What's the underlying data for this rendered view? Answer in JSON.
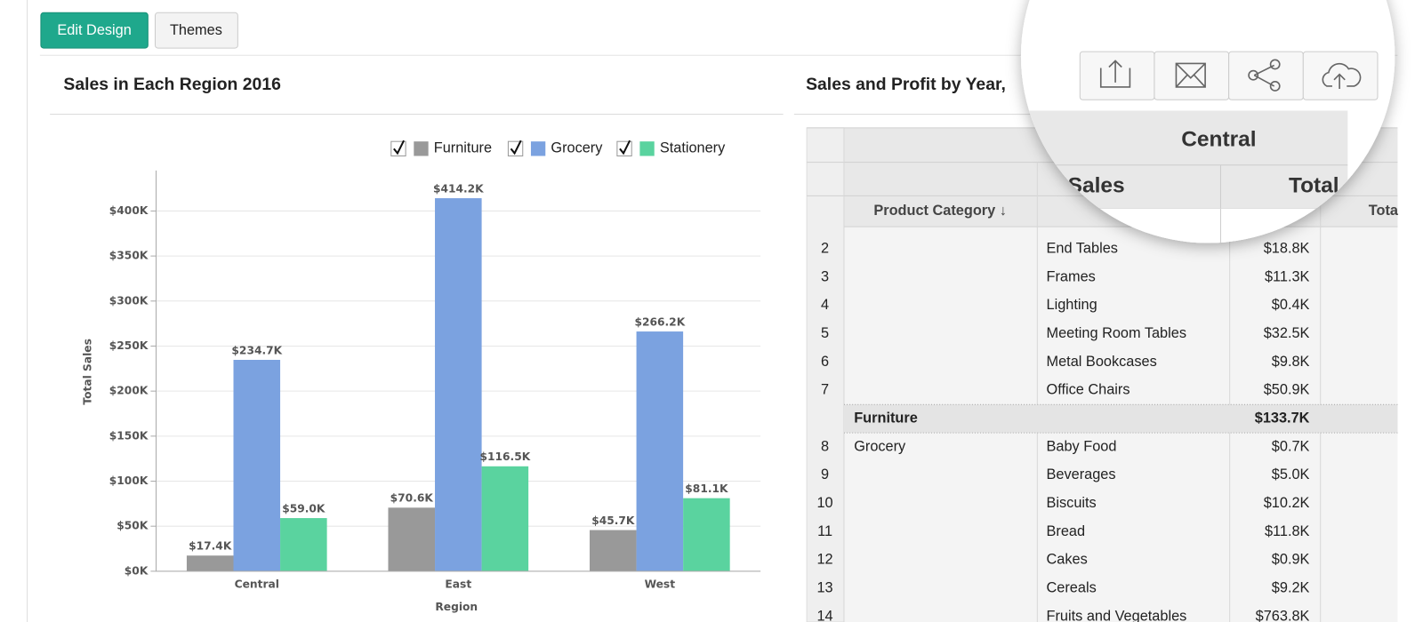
{
  "toolbar": {
    "edit_design": "Edit Design",
    "themes": "Themes"
  },
  "chart_data": {
    "type": "bar",
    "title": "Sales in Each Region 2016",
    "x_label": "Region",
    "y_label": "Total Sales",
    "categories": [
      "Central",
      "East",
      "West"
    ],
    "series": [
      {
        "name": "Furniture",
        "color": "#999999",
        "values": [
          17.4,
          70.6,
          45.7
        ],
        "value_labels": [
          "$17.4K",
          "$70.6K",
          "$45.7K"
        ]
      },
      {
        "name": "Grocery",
        "color": "#7ba2e0",
        "values": [
          234.7,
          414.2,
          266.2
        ],
        "value_labels": [
          "$234.7K",
          "$414.2K",
          "$266.2K"
        ]
      },
      {
        "name": "Stationery",
        "color": "#5ad39f",
        "values": [
          59.0,
          116.5,
          81.1
        ],
        "value_labels": [
          "$59.0K",
          "$116.5K",
          "$81.1K"
        ]
      }
    ],
    "ylim": [
      0,
      445
    ],
    "yticks": [
      {
        "value": 0,
        "label": "$0K"
      },
      {
        "value": 50,
        "label": "$50K"
      },
      {
        "value": 100,
        "label": "$100K"
      },
      {
        "value": 150,
        "label": "$150K"
      },
      {
        "value": 200,
        "label": "$200K"
      },
      {
        "value": 250,
        "label": "$250K"
      },
      {
        "value": 300,
        "label": "$300K"
      },
      {
        "value": 350,
        "label": "$350K"
      },
      {
        "value": 400,
        "label": "$400K"
      }
    ],
    "grid": true,
    "legend": "top-right"
  },
  "pivot": {
    "title": "Sales and Profit by Year,",
    "region": "Central",
    "measure_header": "al Sales",
    "measure_header_2": "Total",
    "row_header": "Product Category ↓",
    "next_header": "Tota",
    "rows": [
      {
        "num": "2",
        "subcategory": "End Tables",
        "sales": "$18.8K"
      },
      {
        "num": "3",
        "subcategory": "Frames",
        "sales": "$11.3K"
      },
      {
        "num": "4",
        "subcategory": "Lighting",
        "sales": "$0.4K"
      },
      {
        "num": "5",
        "subcategory": "Meeting Room Tables",
        "sales": "$32.5K"
      },
      {
        "num": "6",
        "subcategory": "Metal Bookcases",
        "sales": "$9.8K"
      },
      {
        "num": "7",
        "subcategory": "Office Chairs",
        "sales": "$50.9K"
      },
      {
        "category": "Furniture",
        "sales": "$133.7K",
        "subtotal": true
      },
      {
        "num": "8",
        "category": "Grocery",
        "subcategory": "Baby Food",
        "sales": "$0.7K"
      },
      {
        "num": "9",
        "subcategory": "Beverages",
        "sales": "$5.0K"
      },
      {
        "num": "10",
        "subcategory": "Biscuits",
        "sales": "$10.2K"
      },
      {
        "num": "11",
        "subcategory": "Bread",
        "sales": "$11.8K"
      },
      {
        "num": "12",
        "subcategory": "Cakes",
        "sales": "$0.9K"
      },
      {
        "num": "13",
        "subcategory": "Cereals",
        "sales": "$9.2K"
      },
      {
        "num": "14",
        "subcategory": "Fruits and Vegetables",
        "sales": "$763.8K"
      }
    ]
  }
}
